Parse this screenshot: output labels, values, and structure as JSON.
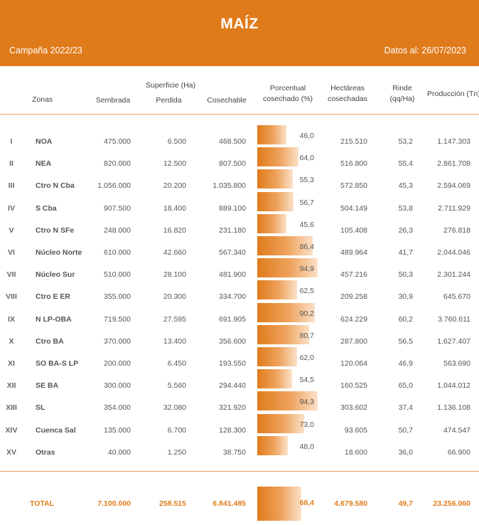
{
  "header": {
    "title": "MAÍZ",
    "campaign": "Campaña 2022/23",
    "date": "Datos al: 26/07/2023"
  },
  "columns": {
    "zonas": "Zonas",
    "superficie": "Superficie (Ha)",
    "sembrada": "Sembrada",
    "perdida": "Perdida",
    "cosechable": "Cosechable",
    "porcentual_1": "Porcentual",
    "porcentual_2": "cosechado (%)",
    "hectareas_1": "Hectáreas",
    "hectareas_2": "cosechadas",
    "rinde_1": "Rinde",
    "rinde_2": "(qq/Ha)",
    "produccion": "Producción (Tn)"
  },
  "colors": {
    "accent": "#e07b1b",
    "separator": "#e8a26a"
  },
  "rows": [
    {
      "roman": "I",
      "zone": "NOA",
      "sembrada": "475.000",
      "perdida": "6.500",
      "cosechable": "468.500",
      "pct": "46,0",
      "pct_value": 46.0,
      "hectareas": "215.510",
      "rinde": "53,2",
      "produccion": "1.147.303"
    },
    {
      "roman": "II",
      "zone": "NEA",
      "sembrada": "820.000",
      "perdida": "12.500",
      "cosechable": "807.500",
      "pct": "64,0",
      "pct_value": 64.0,
      "hectareas": "516.800",
      "rinde": "55,4",
      "produccion": "2.861.708"
    },
    {
      "roman": "III",
      "zone": "Ctro N Cba",
      "sembrada": "1.056.000",
      "perdida": "20.200",
      "cosechable": "1.035.800",
      "pct": "55,3",
      "pct_value": 55.3,
      "hectareas": "572.850",
      "rinde": "45,3",
      "produccion": "2.594.069"
    },
    {
      "roman": "IV",
      "zone": "S Cba",
      "sembrada": "907.500",
      "perdida": "18.400",
      "cosechable": "889.100",
      "pct": "56,7",
      "pct_value": 56.7,
      "hectareas": "504.149",
      "rinde": "53,8",
      "produccion": "2.711.929"
    },
    {
      "roman": "V",
      "zone": "Ctro N SFe",
      "sembrada": "248.000",
      "perdida": "16.820",
      "cosechable": "231.180",
      "pct": "45,6",
      "pct_value": 45.6,
      "hectareas": "105.408",
      "rinde": "26,3",
      "produccion": "276.818"
    },
    {
      "roman": "VI",
      "zone": "Núcleo Norte",
      "sembrada": "610.000",
      "perdida": "42.660",
      "cosechable": "567.340",
      "pct": "86,4",
      "pct_value": 86.4,
      "hectareas": "489.964",
      "rinde": "41,7",
      "produccion": "2.044.046"
    },
    {
      "roman": "VII",
      "zone": "Núcleo Sur",
      "sembrada": "510.000",
      "perdida": "28.100",
      "cosechable": "481.900",
      "pct": "94,9",
      "pct_value": 94.9,
      "hectareas": "457.216",
      "rinde": "50,3",
      "produccion": "2.301.244"
    },
    {
      "roman": "VIII",
      "zone": "Ctro E ER",
      "sembrada": "355.000",
      "perdida": "20.300",
      "cosechable": "334.700",
      "pct": "62,5",
      "pct_value": 62.5,
      "hectareas": "209.258",
      "rinde": "30,9",
      "produccion": "645.670"
    },
    {
      "roman": "IX",
      "zone": "N LP-OBA",
      "sembrada": "719.500",
      "perdida": "27.595",
      "cosechable": "691.905",
      "pct": "90,2",
      "pct_value": 90.2,
      "hectareas": "624.229",
      "rinde": "60,2",
      "produccion": "3.760.611"
    },
    {
      "roman": "X",
      "zone": "Ctro BA",
      "sembrada": "370.000",
      "perdida": "13.400",
      "cosechable": "356.600",
      "pct": "80,7",
      "pct_value": 80.7,
      "hectareas": "287.800",
      "rinde": "56,5",
      "produccion": "1.627.407"
    },
    {
      "roman": "XI",
      "zone": "SO BA-S LP",
      "sembrada": "200.000",
      "perdida": "6.450",
      "cosechable": "193.550",
      "pct": "62,0",
      "pct_value": 62.0,
      "hectareas": "120.064",
      "rinde": "46,9",
      "produccion": "563.690"
    },
    {
      "roman": "XII",
      "zone": "SE BA",
      "sembrada": "300.000",
      "perdida": "5.560",
      "cosechable": "294.440",
      "pct": "54,5",
      "pct_value": 54.5,
      "hectareas": "160.525",
      "rinde": "65,0",
      "produccion": "1.044.012"
    },
    {
      "roman": "XIII",
      "zone": "SL",
      "sembrada": "354.000",
      "perdida": "32.080",
      "cosechable": "321.920",
      "pct": "94,3",
      "pct_value": 94.3,
      "hectareas": "303.602",
      "rinde": "37,4",
      "produccion": "1.136.108"
    },
    {
      "roman": "XIV",
      "zone": "Cuenca Sal",
      "sembrada": "135.000",
      "perdida": "6.700",
      "cosechable": "128.300",
      "pct": "73,0",
      "pct_value": 73.0,
      "hectareas": "93.605",
      "rinde": "50,7",
      "produccion": "474.547"
    },
    {
      "roman": "XV",
      "zone": "Otras",
      "sembrada": "40.000",
      "perdida": "1.250",
      "cosechable": "38.750",
      "pct": "48,0",
      "pct_value": 48.0,
      "hectareas": "18.600",
      "rinde": "36,0",
      "produccion": "66.900"
    }
  ],
  "total": {
    "label": "TOTAL",
    "sembrada": "7.100.000",
    "perdida": "258.515",
    "cosechable": "6.841.485",
    "pct": "68,4",
    "pct_value": 68.4,
    "hectareas": "4.679.580",
    "rinde": "49,7",
    "produccion": "23.256.060"
  }
}
